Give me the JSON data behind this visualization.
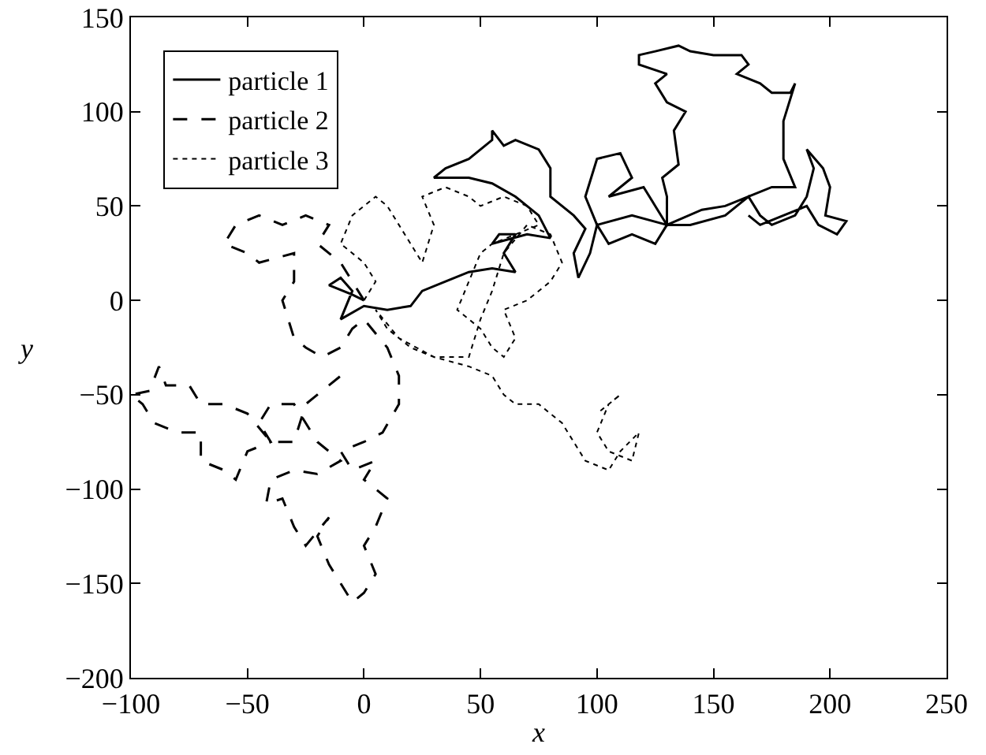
{
  "chart_data": {
    "type": "line",
    "xlabel": "x",
    "ylabel": "y",
    "xlim": [
      -100,
      250
    ],
    "ylim": [
      -200,
      150
    ],
    "xticks": [
      -100,
      -50,
      0,
      50,
      100,
      150,
      200,
      250
    ],
    "yticks": [
      -200,
      -150,
      -100,
      -50,
      0,
      50,
      100,
      150
    ],
    "grid": false,
    "legend": "top left",
    "marker": "none",
    "series": [
      {
        "name": "particle 1",
        "color": "#000000",
        "line_style": "solid",
        "x": [
          0,
          -5,
          -15,
          -10,
          -5,
          -10,
          0,
          10,
          20,
          25,
          35,
          45,
          55,
          65,
          60,
          65,
          58,
          55,
          70,
          80,
          75,
          65,
          55,
          45,
          30,
          35,
          45,
          55,
          55,
          60,
          65,
          75,
          80,
          80,
          90,
          95,
          90,
          92,
          97,
          100,
          95,
          100,
          110,
          115,
          105,
          120,
          125,
          130,
          125,
          115,
          105,
          100,
          115,
          130,
          130,
          128,
          135,
          133,
          138,
          130,
          125,
          130,
          118,
          118,
          125,
          135,
          140,
          150,
          162,
          165,
          160,
          170,
          175,
          183,
          185,
          180,
          180,
          185,
          175,
          165,
          155,
          145,
          130,
          140,
          155,
          165,
          170,
          175,
          185,
          190,
          193,
          190,
          197,
          200,
          198,
          207,
          203,
          195,
          190,
          180,
          170,
          165
        ],
        "values": [
          0,
          3,
          8,
          12,
          5,
          -10,
          -3,
          -5,
          -3,
          5,
          10,
          15,
          17,
          15,
          25,
          35,
          35,
          30,
          35,
          33,
          45,
          55,
          62,
          65,
          65,
          70,
          75,
          85,
          90,
          82,
          85,
          80,
          70,
          55,
          45,
          38,
          25,
          12,
          25,
          40,
          55,
          75,
          78,
          65,
          55,
          60,
          50,
          40,
          30,
          35,
          30,
          40,
          45,
          40,
          55,
          65,
          72,
          90,
          100,
          105,
          115,
          120,
          125,
          130,
          132,
          135,
          132,
          130,
          130,
          125,
          120,
          115,
          110,
          110,
          115,
          95,
          75,
          60,
          60,
          55,
          50,
          48,
          40,
          40,
          45,
          55,
          45,
          40,
          45,
          55,
          70,
          80,
          70,
          60,
          45,
          42,
          35,
          40,
          50,
          45,
          40,
          45
        ]
      },
      {
        "name": "particle 2",
        "color": "#000000",
        "line_style": "dashed",
        "x": [
          0,
          -5,
          -10,
          -20,
          -15,
          -25,
          -35,
          -45,
          -55,
          -60,
          -50,
          -45,
          -30,
          -30,
          -35,
          -30,
          -25,
          -18,
          -10,
          -5,
          0,
          10,
          15,
          15,
          8,
          0,
          -10,
          -5,
          5,
          0,
          10,
          5,
          0,
          5,
          0,
          -5,
          -10,
          -15,
          -20,
          -15,
          -25,
          -30,
          -35,
          -42,
          -40,
          -30,
          -20,
          -10,
          -20,
          -25,
          -30,
          -40,
          -45,
          -40,
          -50,
          -55,
          -60,
          -70,
          -70,
          -80,
          -90,
          -95,
          -100,
          -92,
          -88,
          -85,
          -75,
          -70,
          -60,
          -50,
          -40,
          -30,
          -25,
          -15,
          -10
        ],
        "values": [
          0,
          10,
          20,
          30,
          40,
          45,
          40,
          45,
          40,
          30,
          25,
          20,
          25,
          10,
          0,
          -20,
          -25,
          -30,
          -25,
          -15,
          -10,
          -25,
          -40,
          -55,
          -70,
          -75,
          -80,
          -90,
          -85,
          -95,
          -105,
          -120,
          -130,
          -145,
          -155,
          -160,
          -150,
          -140,
          -125,
          -115,
          -130,
          -120,
          -105,
          -108,
          -95,
          -90,
          -92,
          -85,
          -75,
          -65,
          -55,
          -55,
          -65,
          -75,
          -80,
          -95,
          -90,
          -85,
          -70,
          -70,
          -65,
          -55,
          -50,
          -48,
          -35,
          -45,
          -45,
          -55,
          -55,
          -60,
          -75,
          -75,
          -55,
          -45,
          -40
        ]
      },
      {
        "name": "particle 3",
        "color": "#000000",
        "line_style": "dotted",
        "x": [
          0,
          5,
          0,
          -10,
          -5,
          5,
          10,
          15,
          20,
          25,
          30,
          25,
          35,
          45,
          50,
          60,
          70,
          75,
          65,
          55,
          50,
          45,
          40,
          50,
          55,
          60,
          65,
          60,
          70,
          80,
          85,
          80,
          70,
          60,
          55,
          50,
          45,
          30,
          20,
          10,
          5,
          15,
          30,
          45,
          55,
          60,
          65,
          75,
          85,
          90,
          95,
          105,
          110,
          118,
          115,
          105,
          100,
          105,
          110,
          100
        ],
        "values": [
          0,
          10,
          20,
          30,
          45,
          55,
          50,
          40,
          30,
          20,
          40,
          55,
          60,
          55,
          50,
          55,
          50,
          40,
          35,
          30,
          25,
          10,
          -5,
          -15,
          -25,
          -30,
          -20,
          -5,
          0,
          10,
          20,
          35,
          40,
          25,
          5,
          -10,
          -30,
          -30,
          -25,
          -15,
          -5,
          -20,
          -30,
          -35,
          -40,
          -50,
          -55,
          -55,
          -65,
          -75,
          -85,
          -90,
          -80,
          -70,
          -85,
          -80,
          -70,
          -55,
          -50,
          -60
        ]
      }
    ]
  }
}
